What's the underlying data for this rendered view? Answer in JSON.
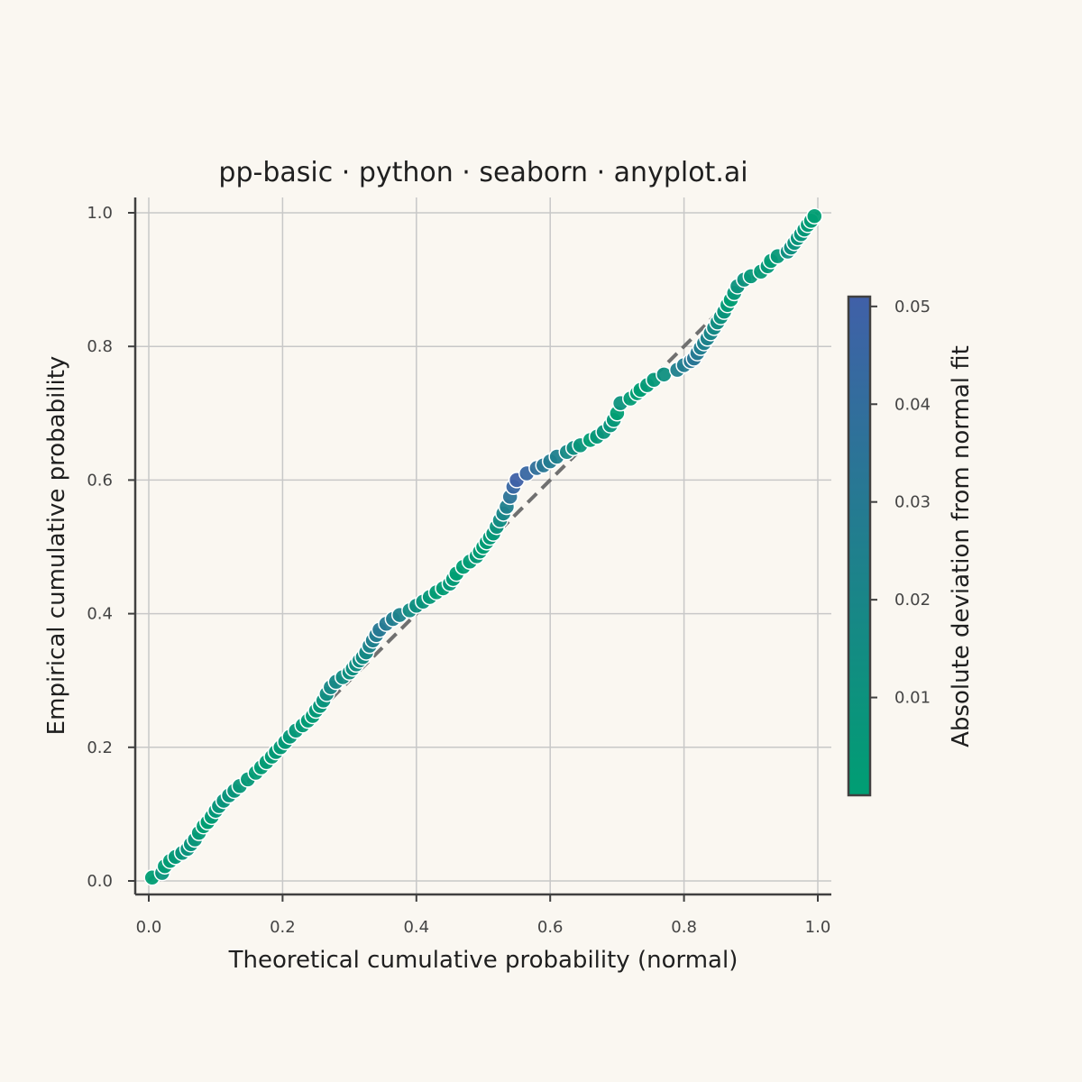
{
  "colors": {
    "background": "#FAF7F1",
    "axis": "#404040",
    "grid": "#c8c8c8",
    "reference_line": "#707070",
    "marker_edge": "#ffffff",
    "colormap_low": "#009E73",
    "colormap_high": "#4060A8"
  },
  "chart_data": {
    "type": "scatter",
    "title": "pp-basic · python · seaborn · anyplot.ai",
    "xlabel": "Theoretical cumulative probability (normal)",
    "ylabel": "Empirical cumulative probability",
    "xlim": [
      -0.02,
      1.02
    ],
    "ylim": [
      -0.02,
      1.02
    ],
    "xticks": [
      "0.0",
      "0.2",
      "0.4",
      "0.6",
      "0.8",
      "1.0"
    ],
    "yticks": [
      "0.0",
      "0.2",
      "0.4",
      "0.6",
      "0.8",
      "1.0"
    ],
    "grid": true,
    "reference_line": {
      "from": [
        0,
        0
      ],
      "to": [
        1,
        1
      ],
      "style": "dashed"
    },
    "colorbar": {
      "label": "Absolute deviation from normal fit",
      "range": [
        0.0,
        0.051
      ],
      "ticks": [
        "0.01",
        "0.02",
        "0.03",
        "0.04",
        "0.05"
      ]
    },
    "x": [
      0.005,
      0.02,
      0.024,
      0.032,
      0.04,
      0.05,
      0.058,
      0.063,
      0.069,
      0.075,
      0.082,
      0.088,
      0.094,
      0.1,
      0.105,
      0.112,
      0.12,
      0.128,
      0.136,
      0.148,
      0.16,
      0.168,
      0.176,
      0.184,
      0.19,
      0.197,
      0.204,
      0.211,
      0.22,
      0.23,
      0.238,
      0.245,
      0.25,
      0.256,
      0.261,
      0.266,
      0.272,
      0.28,
      0.29,
      0.3,
      0.305,
      0.31,
      0.315,
      0.32,
      0.325,
      0.33,
      0.335,
      0.34,
      0.345,
      0.355,
      0.365,
      0.375,
      0.39,
      0.4,
      0.41,
      0.42,
      0.43,
      0.44,
      0.45,
      0.455,
      0.46,
      0.47,
      0.48,
      0.49,
      0.495,
      0.5,
      0.505,
      0.51,
      0.515,
      0.52,
      0.525,
      0.53,
      0.535,
      0.54,
      0.545,
      0.55,
      0.565,
      0.58,
      0.59,
      0.6,
      0.61,
      0.625,
      0.635,
      0.645,
      0.66,
      0.67,
      0.68,
      0.69,
      0.695,
      0.7,
      0.705,
      0.72,
      0.73,
      0.735,
      0.745,
      0.755,
      0.77,
      0.79,
      0.8,
      0.81,
      0.815,
      0.82,
      0.825,
      0.83,
      0.835,
      0.84,
      0.845,
      0.85,
      0.855,
      0.86,
      0.865,
      0.87,
      0.875,
      0.88,
      0.89,
      0.9,
      0.915,
      0.925,
      0.93,
      0.94,
      0.955,
      0.96,
      0.965,
      0.97,
      0.975,
      0.98,
      0.985,
      0.99,
      0.995
    ],
    "y": [
      0.005,
      0.012,
      0.022,
      0.03,
      0.036,
      0.042,
      0.048,
      0.055,
      0.062,
      0.072,
      0.082,
      0.088,
      0.096,
      0.105,
      0.112,
      0.12,
      0.128,
      0.135,
      0.142,
      0.152,
      0.162,
      0.17,
      0.178,
      0.186,
      0.193,
      0.2,
      0.208,
      0.216,
      0.225,
      0.233,
      0.24,
      0.247,
      0.255,
      0.262,
      0.27,
      0.28,
      0.29,
      0.298,
      0.305,
      0.312,
      0.318,
      0.324,
      0.33,
      0.335,
      0.342,
      0.352,
      0.36,
      0.368,
      0.376,
      0.385,
      0.392,
      0.398,
      0.405,
      0.412,
      0.418,
      0.425,
      0.432,
      0.438,
      0.445,
      0.452,
      0.46,
      0.47,
      0.478,
      0.486,
      0.493,
      0.5,
      0.507,
      0.514,
      0.52,
      0.53,
      0.54,
      0.55,
      0.56,
      0.575,
      0.59,
      0.6,
      0.61,
      0.618,
      0.622,
      0.628,
      0.635,
      0.642,
      0.648,
      0.652,
      0.66,
      0.665,
      0.672,
      0.682,
      0.69,
      0.7,
      0.715,
      0.722,
      0.73,
      0.735,
      0.742,
      0.75,
      0.758,
      0.765,
      0.772,
      0.778,
      0.782,
      0.79,
      0.798,
      0.805,
      0.812,
      0.82,
      0.828,
      0.836,
      0.844,
      0.852,
      0.862,
      0.87,
      0.88,
      0.89,
      0.9,
      0.905,
      0.912,
      0.92,
      0.928,
      0.935,
      0.942,
      0.948,
      0.955,
      0.962,
      0.968,
      0.975,
      0.982,
      0.988,
      0.995
    ]
  }
}
